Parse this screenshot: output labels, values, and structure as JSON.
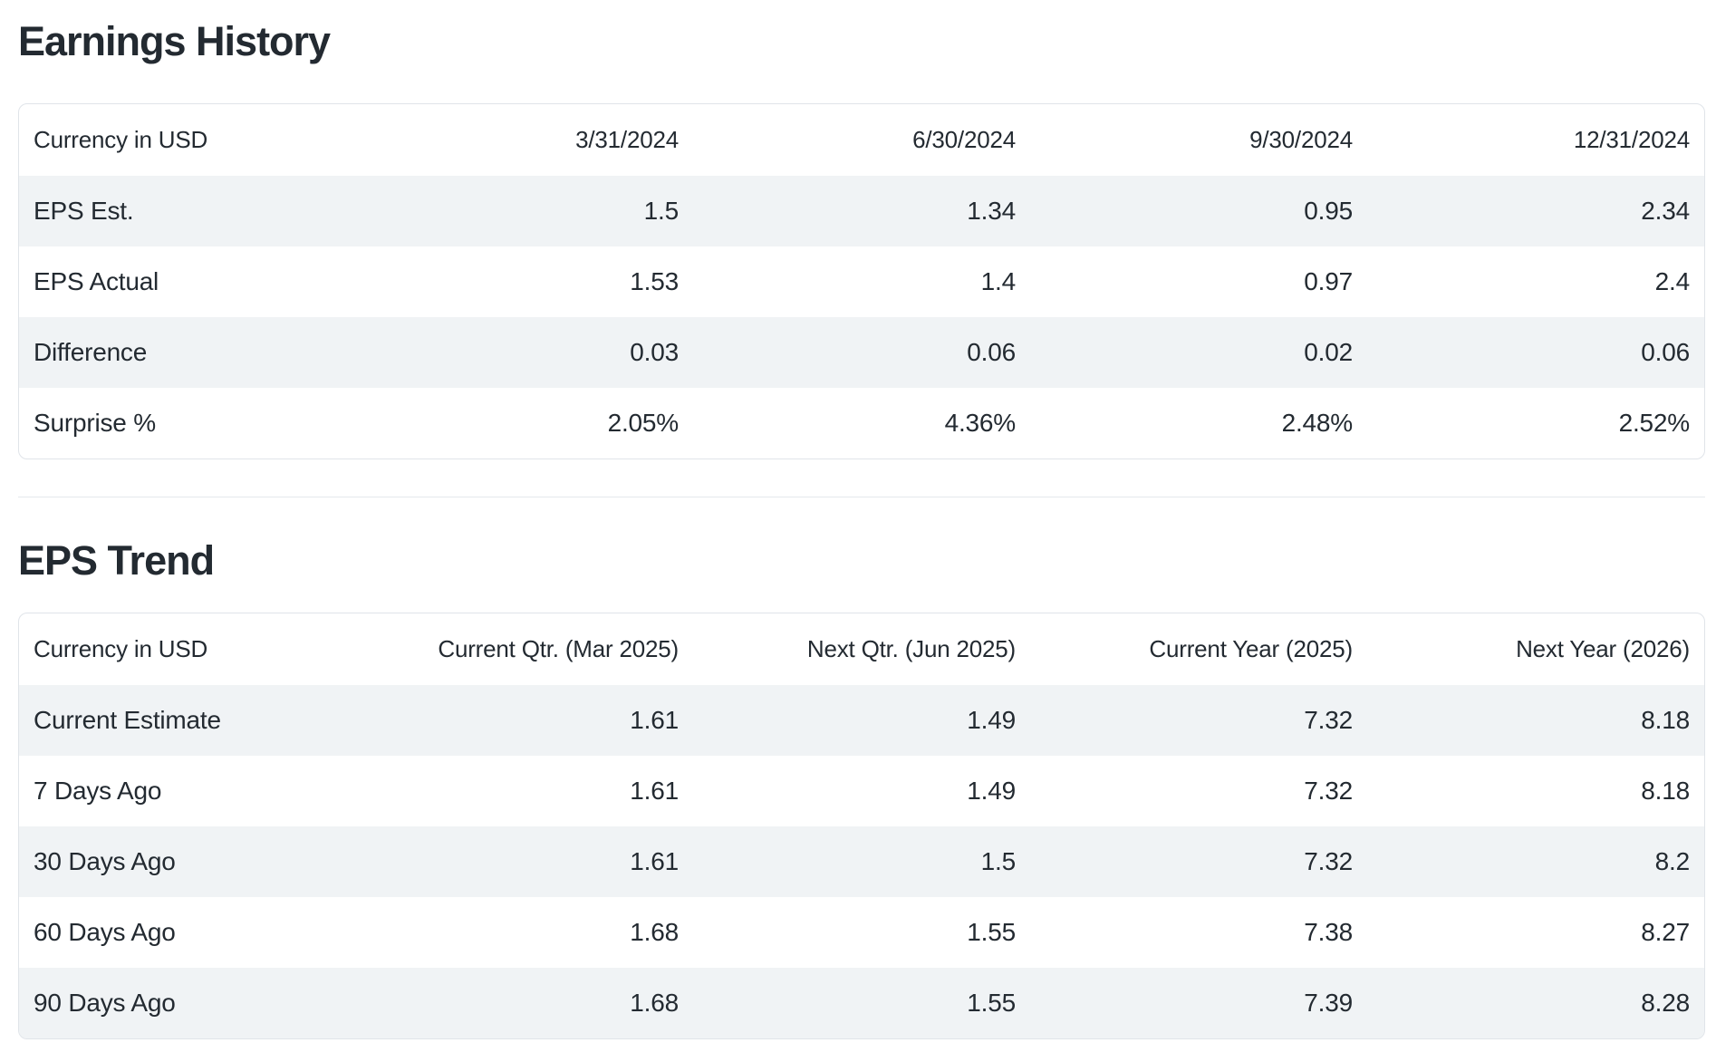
{
  "colors": {
    "text": "#232a31",
    "stripe": "#f0f3f5",
    "card_border": "#e0e4e9",
    "divider": "#e5e8ec",
    "background": "#ffffff"
  },
  "sections": [
    {
      "title": "Earnings History",
      "table": {
        "header": [
          "Currency in USD",
          "3/31/2024",
          "6/30/2024",
          "9/30/2024",
          "12/31/2024"
        ],
        "rows": [
          {
            "label": "EPS Est.",
            "values": [
              "1.5",
              "1.34",
              "0.95",
              "2.34"
            ]
          },
          {
            "label": "EPS Actual",
            "values": [
              "1.53",
              "1.4",
              "0.97",
              "2.4"
            ]
          },
          {
            "label": "Difference",
            "values": [
              "0.03",
              "0.06",
              "0.02",
              "0.06"
            ]
          },
          {
            "label": "Surprise %",
            "values": [
              "2.05%",
              "4.36%",
              "2.48%",
              "2.52%"
            ]
          }
        ]
      }
    },
    {
      "title": "EPS Trend",
      "table": {
        "header": [
          "Currency in USD",
          "Current Qtr. (Mar 2025)",
          "Next Qtr. (Jun 2025)",
          "Current Year (2025)",
          "Next Year (2026)"
        ],
        "rows": [
          {
            "label": "Current Estimate",
            "values": [
              "1.61",
              "1.49",
              "7.32",
              "8.18"
            ]
          },
          {
            "label": "7 Days Ago",
            "values": [
              "1.61",
              "1.49",
              "7.32",
              "8.18"
            ]
          },
          {
            "label": "30 Days Ago",
            "values": [
              "1.61",
              "1.5",
              "7.32",
              "8.2"
            ]
          },
          {
            "label": "60 Days Ago",
            "values": [
              "1.68",
              "1.55",
              "7.38",
              "8.27"
            ]
          },
          {
            "label": "90 Days Ago",
            "values": [
              "1.68",
              "1.55",
              "7.39",
              "8.28"
            ]
          }
        ]
      }
    }
  ]
}
